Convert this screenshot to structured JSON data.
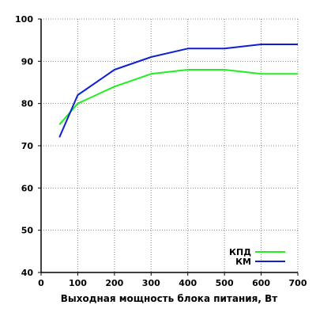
{
  "chart_data": {
    "type": "line",
    "title": "",
    "xlabel": "Выходная мощность блока питания, Вт",
    "ylabel": "",
    "xlim": [
      0,
      700
    ],
    "ylim": [
      40,
      100
    ],
    "xticks": [
      0,
      100,
      200,
      300,
      400,
      500,
      600,
      700
    ],
    "yticks": [
      40,
      50,
      60,
      70,
      80,
      90,
      100
    ],
    "xtick_labels": [
      "0",
      "100",
      "200",
      "300",
      "400",
      "500",
      "600",
      "700"
    ],
    "ytick_labels": [
      "40",
      "50",
      "60",
      "70",
      "80",
      "90",
      "100"
    ],
    "grid": "dotted",
    "legend_position": "bottom-right",
    "series": [
      {
        "name": "КПД",
        "color": "#22ee22",
        "x": [
          50,
          100,
          200,
          300,
          400,
          500,
          600,
          700
        ],
        "values": [
          75,
          80,
          84,
          87,
          88,
          88,
          87,
          87
        ]
      },
      {
        "name": "КМ",
        "color": "#1020d0",
        "x": [
          50,
          100,
          200,
          300,
          400,
          500,
          600,
          700
        ],
        "values": [
          72,
          82,
          88,
          91,
          93,
          93,
          94,
          94
        ]
      }
    ]
  }
}
